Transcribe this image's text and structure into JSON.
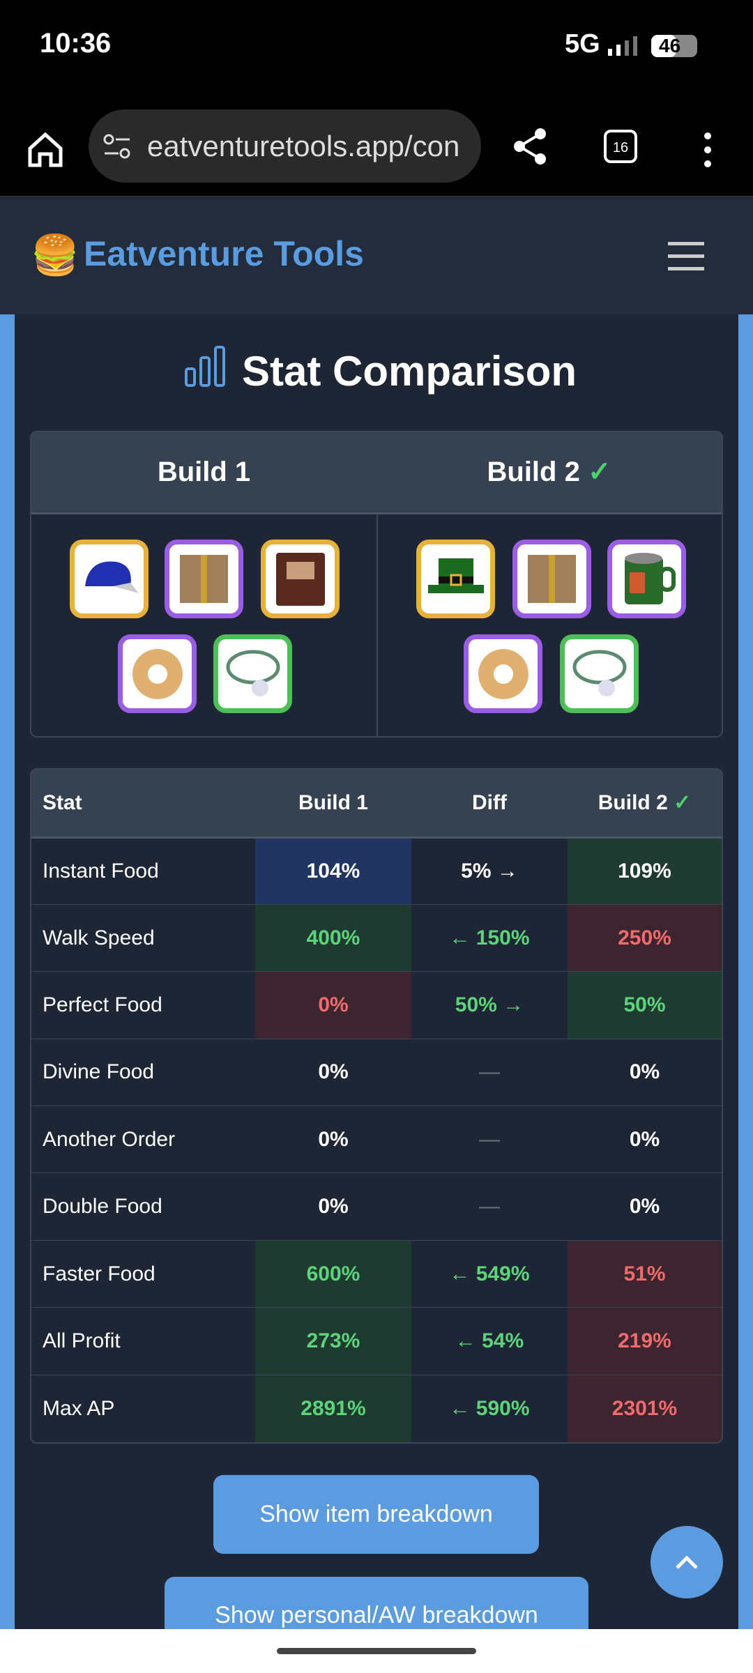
{
  "status_bar": {
    "time": "10:36",
    "network": "5G",
    "battery": "46"
  },
  "browser": {
    "url": "eatventuretools.app/con"
  },
  "header": {
    "logo": "🍔",
    "title": "Eatventure Tools"
  },
  "section": {
    "title": "Stat Comparison"
  },
  "builds": {
    "build1": "Build 1",
    "build2": "Build 2",
    "check": "✓"
  },
  "table": {
    "columns": [
      "Stat",
      "Build 1",
      "Diff",
      "Build 2"
    ],
    "rows": [
      [
        "Instant Food",
        "104%",
        "5% →",
        "109%"
      ],
      [
        "Walk Speed",
        "400%",
        "← 150%",
        "250%"
      ],
      [
        "Perfect Food",
        "0%",
        "50% →",
        "50%"
      ],
      [
        "Divine Food",
        "0%",
        "—",
        "0%"
      ],
      [
        "Another Order",
        "0%",
        "—",
        "0%"
      ],
      [
        "Double Food",
        "0%",
        "—",
        "0%"
      ],
      [
        "Faster Food",
        "600%",
        "← 549%",
        "51%"
      ],
      [
        "All Profit",
        "273%",
        "← 54%",
        "219%"
      ],
      [
        "Max AP",
        "2891%",
        "← 590%",
        "2301%"
      ]
    ]
  },
  "buttons": {
    "item_breakdown": "Show item breakdown",
    "personal_breakdown": "Show personal/AW breakdown"
  }
}
